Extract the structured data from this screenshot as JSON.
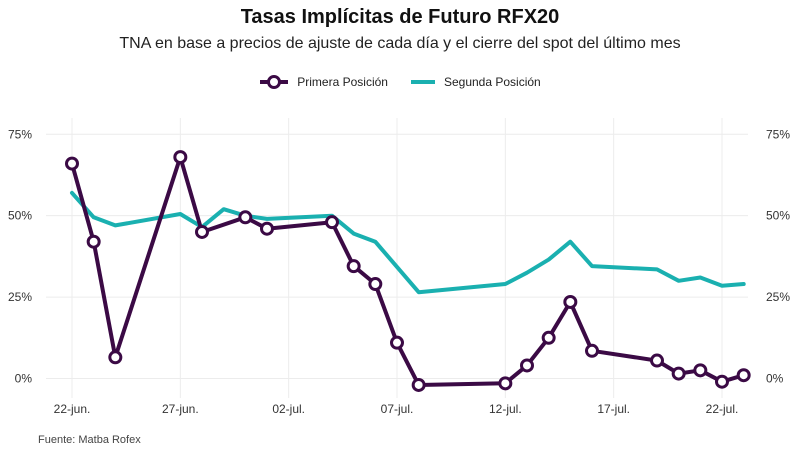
{
  "title": "Tasas Implícitas de Futuro RFX20",
  "subtitle": "TNA en base a precios de ajuste de cada día y el cierre del spot del último mes",
  "source": "Fuente: Matba Rofex",
  "colors": {
    "primera": "#3b0a45",
    "segunda": "#1ab0b0",
    "grid": "#ececec",
    "axis_text": "#333333"
  },
  "chart_data": {
    "type": "line",
    "title": "Tasas Implícitas de Futuro RFX20",
    "subtitle": "TNA en base a precios de ajuste de cada día y el cierre del spot del último mes",
    "xlabel": "",
    "ylabel": "",
    "x_ticks": [
      "22-jun.",
      "27-jun.",
      "02-jul.",
      "07-jul.",
      "12-jul.",
      "17-jul.",
      "22-jul."
    ],
    "x_tick_day_values": [
      0,
      5,
      10,
      15,
      20,
      25,
      30
    ],
    "xlim": [
      -1.2,
      31.2
    ],
    "y_ticks": [
      "0%",
      "25%",
      "50%",
      "75%"
    ],
    "y_tick_values": [
      0,
      25,
      50,
      75
    ],
    "ylim": [
      -6,
      80
    ],
    "dual_y_axis": true,
    "grid": true,
    "legend_position": "top",
    "series": [
      {
        "name": "Primera Posición",
        "marker": "circle",
        "x": [
          0,
          1,
          2,
          5,
          6,
          8,
          9,
          12,
          13,
          14,
          15,
          16,
          20,
          21,
          22,
          23,
          24,
          27,
          28,
          29,
          30,
          31
        ],
        "y": [
          66,
          42,
          6.5,
          68,
          45,
          49.5,
          46,
          48,
          34.5,
          29,
          11,
          -2,
          -1.5,
          4,
          12.5,
          23.5,
          8.5,
          5.5,
          1.5,
          2.5,
          -1,
          1
        ]
      },
      {
        "name": "Segunda Posición",
        "marker": "none",
        "x": [
          0,
          1,
          2,
          5,
          6,
          7,
          8,
          9,
          12,
          13,
          14,
          16,
          20,
          21,
          22,
          23,
          24,
          27,
          28,
          29,
          30,
          31
        ],
        "y": [
          57,
          49.5,
          47,
          50.5,
          46.5,
          52,
          50,
          49,
          50,
          44.5,
          42,
          26.5,
          29,
          32.5,
          36.5,
          42,
          34.5,
          33.5,
          30,
          31,
          28.5,
          29
        ]
      }
    ]
  }
}
